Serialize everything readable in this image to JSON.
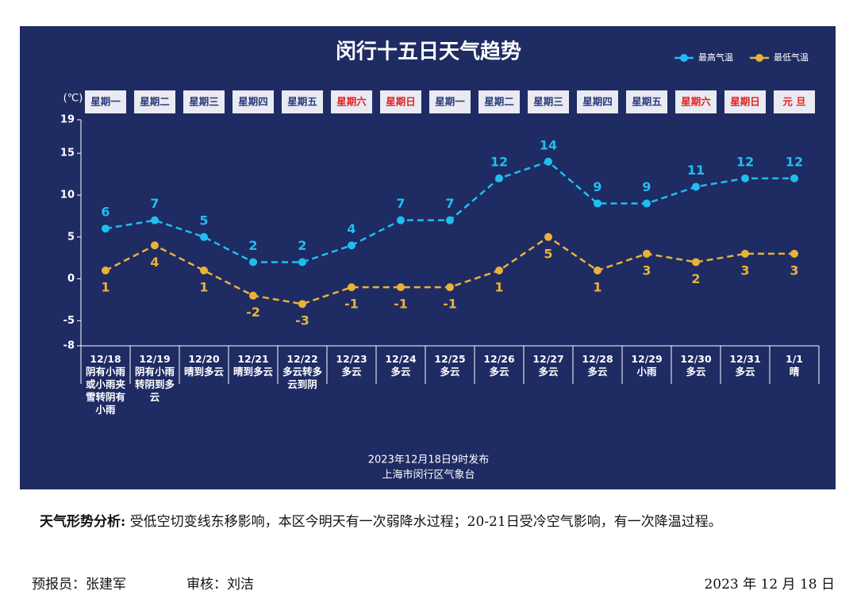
{
  "chart_data": {
    "type": "line",
    "title": "闵行十五日天气趋势",
    "y_unit": "(℃)",
    "weekdays": [
      "星期一",
      "星期二",
      "星期三",
      "星期四",
      "星期五",
      "星期六",
      "星期日",
      "星期一",
      "星期二",
      "星期三",
      "星期四",
      "星期五",
      "星期六",
      "星期日",
      "元 旦"
    ],
    "weekday_colors": [
      "#2a3a7a",
      "#2a3a7a",
      "#2a3a7a",
      "#2a3a7a",
      "#2a3a7a",
      "#e02020",
      "#e02020",
      "#2a3a7a",
      "#2a3a7a",
      "#2a3a7a",
      "#2a3a7a",
      "#2a3a7a",
      "#e02020",
      "#e02020",
      "#e02020"
    ],
    "categories": [
      "12/18",
      "12/19",
      "12/20",
      "12/21",
      "12/22",
      "12/23",
      "12/24",
      "12/25",
      "12/26",
      "12/27",
      "12/28",
      "12/29",
      "12/30",
      "12/31",
      "1/1"
    ],
    "weather": [
      "阴有小雨或小雨夹雪转阴有小雨",
      "阴有小雨转阴到多云",
      "晴到多云",
      "晴到多云",
      "多云转多云到阴",
      "多云",
      "多云",
      "多云",
      "多云",
      "多云",
      "多云",
      "小雨",
      "多云",
      "多云",
      "晴"
    ],
    "series": [
      {
        "name": "最高气温",
        "color": "#1fbef0",
        "values": [
          6,
          7,
          5,
          2,
          2,
          4,
          7,
          7,
          12,
          14,
          9,
          9,
          11,
          12,
          12
        ]
      },
      {
        "name": "最低气温",
        "color": "#e8b339",
        "values": [
          1,
          4,
          1,
          -2,
          -3,
          -1,
          -1,
          -1,
          1,
          5,
          1,
          3,
          2,
          3,
          3
        ]
      }
    ],
    "ylim": [
      -8,
      19
    ],
    "yticks": [
      -8,
      -5,
      0,
      5,
      10,
      15,
      19
    ],
    "notes": [
      "2023年12月18日9时发布",
      "上海市闵行区气象台"
    ]
  },
  "document": {
    "analysis_label": "天气形势分析:",
    "analysis": "受低空切变线东移影响，本区今明天有一次弱降水过程；20-21日受冷空气影响，有一次降温过程。",
    "forecaster": "预报员：张建军",
    "reviewer": "审核：刘洁",
    "date": "2023 年 12 月 18 日"
  }
}
